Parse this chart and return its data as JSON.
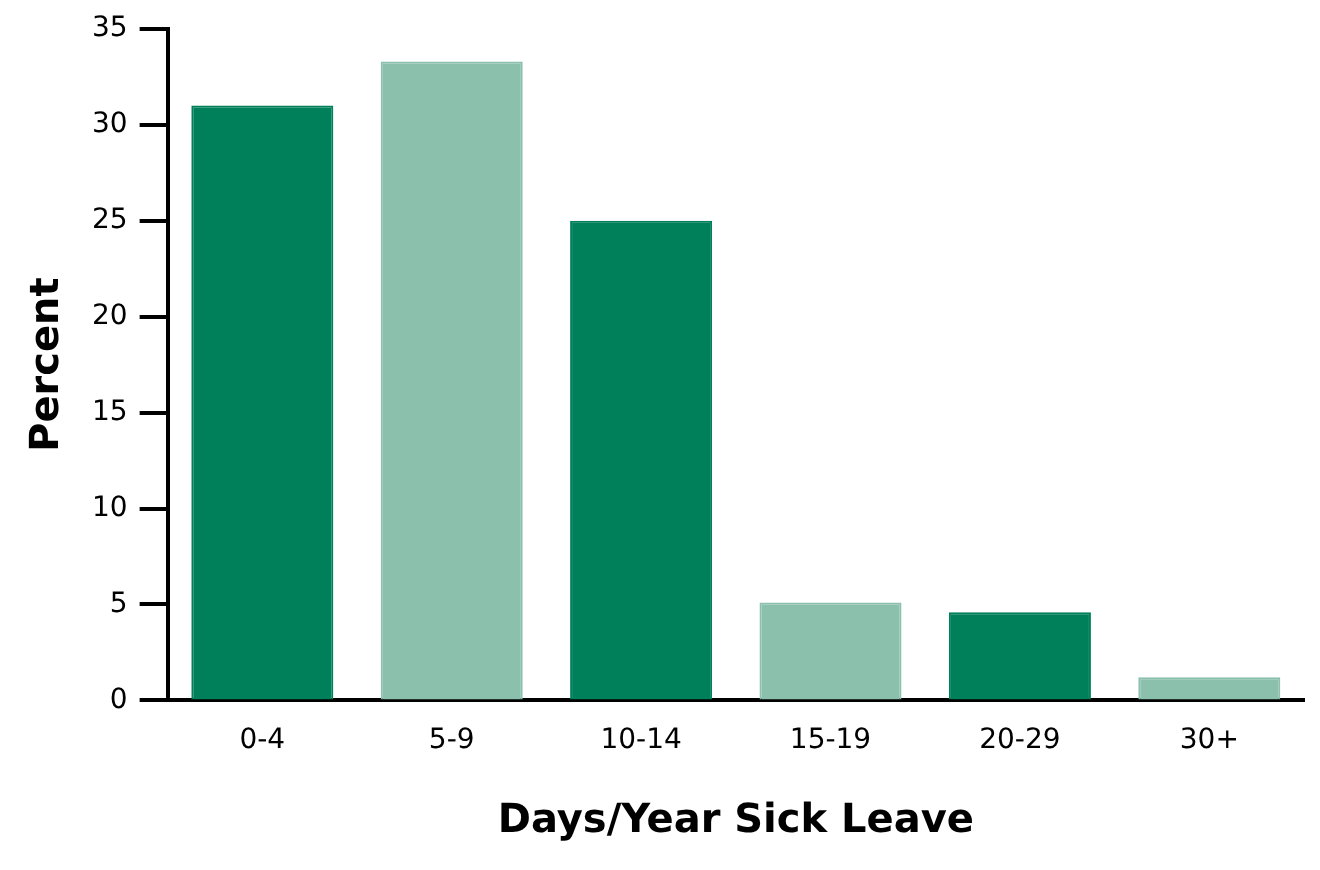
{
  "chart_data": {
    "type": "bar",
    "xlabel": "Days/Year Sick Leave",
    "ylabel": "Percent",
    "categories": [
      "0-4",
      "5-9",
      "10-14",
      "15-19",
      "20-29",
      "30+"
    ],
    "values": [
      31,
      33.3,
      25,
      5.1,
      4.6,
      1.2
    ],
    "colors": [
      "#00805a",
      "#8bc0ad",
      "#00805a",
      "#8bc0ad",
      "#00805a",
      "#8bc0ad"
    ],
    "ylim": [
      0,
      35
    ],
    "yticks": [
      0,
      5,
      10,
      15,
      20,
      25,
      30,
      35
    ],
    "grid": false,
    "legend": false
  }
}
